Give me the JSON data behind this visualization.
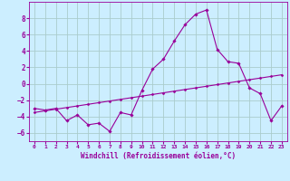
{
  "xlabel": "Windchill (Refroidissement éolien,°C)",
  "x": [
    0,
    1,
    2,
    3,
    4,
    5,
    6,
    7,
    8,
    9,
    10,
    11,
    12,
    13,
    14,
    15,
    16,
    17,
    18,
    19,
    20,
    21,
    22,
    23
  ],
  "line1_y": [
    -3.0,
    -3.2,
    -3.0,
    -4.5,
    -3.8,
    -5.0,
    -4.8,
    -5.8,
    -3.5,
    -3.8,
    -0.8,
    1.8,
    3.0,
    5.2,
    7.2,
    8.5,
    9.0,
    4.2,
    2.7,
    2.5,
    -0.5,
    -1.2,
    -4.5,
    -2.7
  ],
  "line2_y": [
    -3.5,
    -3.3,
    -3.1,
    -2.9,
    -2.7,
    -2.5,
    -2.3,
    -2.1,
    -1.9,
    -1.7,
    -1.5,
    -1.3,
    -1.1,
    -0.9,
    -0.7,
    -0.5,
    -0.3,
    -0.1,
    0.1,
    0.3,
    0.5,
    0.7,
    0.9,
    1.1
  ],
  "line_color": "#990099",
  "bg_color": "#cceeff",
  "grid_color": "#aacccc",
  "ylim": [
    -7,
    10
  ],
  "xlim": [
    -0.5,
    23.5
  ],
  "yticks": [
    -6,
    -4,
    -2,
    0,
    2,
    4,
    6,
    8
  ],
  "xticks": [
    0,
    1,
    2,
    3,
    4,
    5,
    6,
    7,
    8,
    9,
    10,
    11,
    12,
    13,
    14,
    15,
    16,
    17,
    18,
    19,
    20,
    21,
    22,
    23
  ]
}
